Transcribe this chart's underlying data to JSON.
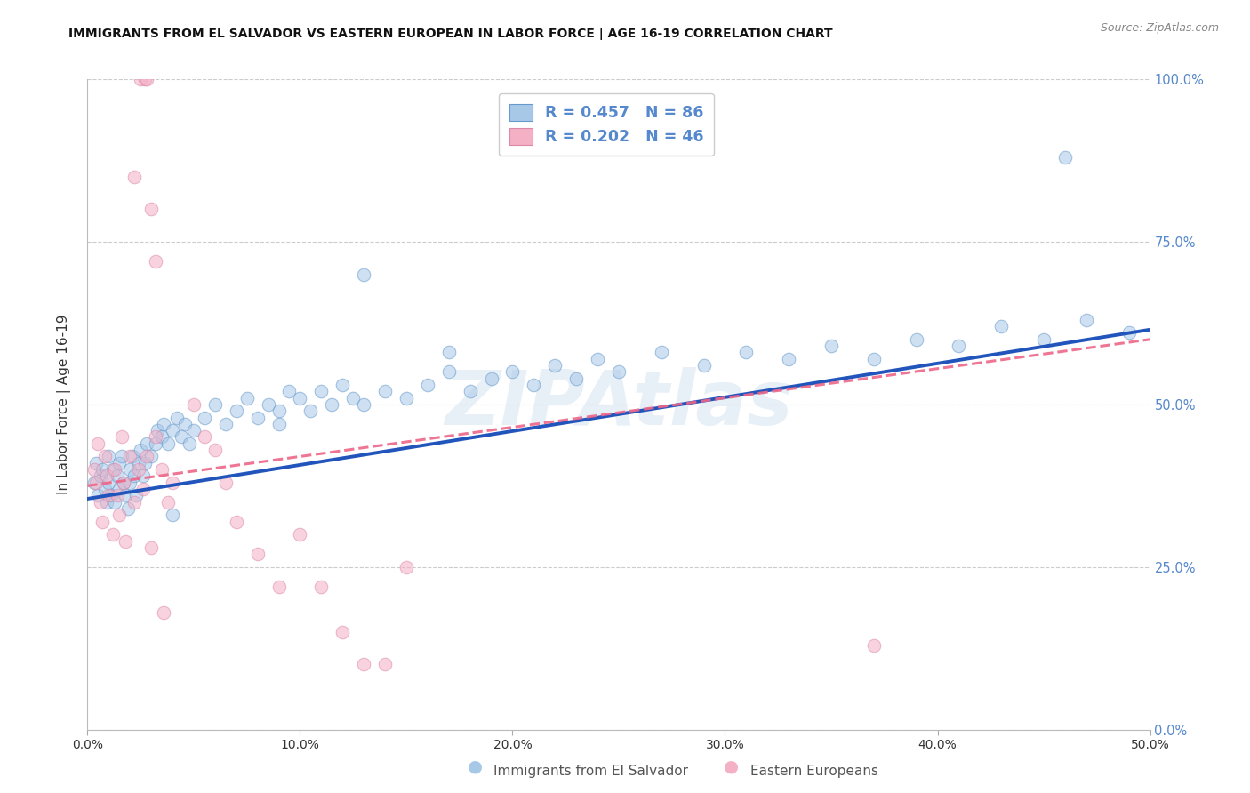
{
  "title": "IMMIGRANTS FROM EL SALVADOR VS EASTERN EUROPEAN IN LABOR FORCE | AGE 16-19 CORRELATION CHART",
  "source": "Source: ZipAtlas.com",
  "ylabel": "In Labor Force | Age 16-19",
  "legend_labels": [
    "Immigrants from El Salvador",
    "Eastern Europeans"
  ],
  "legend_r_blue": "R = 0.457",
  "legend_n_blue": "N = 86",
  "legend_r_pink": "R = 0.202",
  "legend_n_pink": "N = 46",
  "blue_scatter_color": "#A8C8E8",
  "blue_scatter_edge": "#6699CC",
  "pink_scatter_color": "#F4B0C5",
  "pink_scatter_edge": "#DD88AA",
  "blue_line_color": "#2255BB",
  "pink_line_color": "#EE6688",
  "right_axis_color": "#5588CC",
  "watermark": "ZIPAtlas",
  "watermark_color": "#C5D8EC",
  "xlim": [
    0.0,
    0.5
  ],
  "ylim": [
    0.0,
    1.0
  ],
  "xtick_vals": [
    0.0,
    0.1,
    0.2,
    0.3,
    0.4,
    0.5
  ],
  "xtick_labels": [
    "0.0%",
    "10.0%",
    "20.0%",
    "30.0%",
    "40.0%",
    "50.0%"
  ],
  "ytick_vals": [
    0.0,
    0.25,
    0.5,
    0.75,
    1.0
  ],
  "ytick_labels_right": [
    "0.0%",
    "25.0%",
    "50.0%",
    "75.0%",
    "100.0%"
  ],
  "grid_color": "#CCCCCC",
  "background_color": "#FFFFFF",
  "blue_x": [
    0.003,
    0.004,
    0.005,
    0.006,
    0.007,
    0.008,
    0.009,
    0.01,
    0.01,
    0.011,
    0.012,
    0.013,
    0.014,
    0.015,
    0.015,
    0.016,
    0.017,
    0.018,
    0.019,
    0.02,
    0.02,
    0.021,
    0.022,
    0.023,
    0.024,
    0.025,
    0.026,
    0.027,
    0.028,
    0.03,
    0.032,
    0.033,
    0.035,
    0.036,
    0.038,
    0.04,
    0.042,
    0.044,
    0.046,
    0.048,
    0.05,
    0.055,
    0.06,
    0.065,
    0.07,
    0.075,
    0.08,
    0.085,
    0.09,
    0.095,
    0.1,
    0.105,
    0.11,
    0.115,
    0.12,
    0.125,
    0.13,
    0.14,
    0.15,
    0.16,
    0.17,
    0.18,
    0.19,
    0.2,
    0.21,
    0.22,
    0.23,
    0.24,
    0.25,
    0.27,
    0.29,
    0.31,
    0.33,
    0.35,
    0.37,
    0.39,
    0.41,
    0.43,
    0.45,
    0.47,
    0.49,
    0.17,
    0.13,
    0.09,
    0.04,
    0.46
  ],
  "blue_y": [
    0.38,
    0.41,
    0.36,
    0.39,
    0.4,
    0.37,
    0.35,
    0.42,
    0.38,
    0.36,
    0.4,
    0.35,
    0.39,
    0.41,
    0.37,
    0.42,
    0.38,
    0.36,
    0.34,
    0.4,
    0.38,
    0.42,
    0.39,
    0.36,
    0.41,
    0.43,
    0.39,
    0.41,
    0.44,
    0.42,
    0.44,
    0.46,
    0.45,
    0.47,
    0.44,
    0.46,
    0.48,
    0.45,
    0.47,
    0.44,
    0.46,
    0.48,
    0.5,
    0.47,
    0.49,
    0.51,
    0.48,
    0.5,
    0.49,
    0.52,
    0.51,
    0.49,
    0.52,
    0.5,
    0.53,
    0.51,
    0.5,
    0.52,
    0.51,
    0.53,
    0.55,
    0.52,
    0.54,
    0.55,
    0.53,
    0.56,
    0.54,
    0.57,
    0.55,
    0.58,
    0.56,
    0.58,
    0.57,
    0.59,
    0.57,
    0.6,
    0.59,
    0.62,
    0.6,
    0.63,
    0.61,
    0.58,
    0.7,
    0.47,
    0.33,
    0.88
  ],
  "pink_x": [
    0.003,
    0.004,
    0.005,
    0.006,
    0.007,
    0.008,
    0.009,
    0.01,
    0.012,
    0.013,
    0.014,
    0.015,
    0.016,
    0.017,
    0.018,
    0.02,
    0.022,
    0.024,
    0.026,
    0.028,
    0.03,
    0.032,
    0.035,
    0.038,
    0.04,
    0.025,
    0.027,
    0.028,
    0.05,
    0.055,
    0.06,
    0.065,
    0.07,
    0.08,
    0.09,
    0.1,
    0.11,
    0.12,
    0.13,
    0.14,
    0.15,
    0.03,
    0.032,
    0.036,
    0.37,
    0.022
  ],
  "pink_y": [
    0.4,
    0.38,
    0.44,
    0.35,
    0.32,
    0.42,
    0.39,
    0.36,
    0.3,
    0.4,
    0.36,
    0.33,
    0.45,
    0.38,
    0.29,
    0.42,
    0.35,
    0.4,
    0.37,
    0.42,
    0.28,
    0.45,
    0.4,
    0.35,
    0.38,
    1.0,
    1.0,
    1.0,
    0.5,
    0.45,
    0.43,
    0.38,
    0.32,
    0.27,
    0.22,
    0.3,
    0.22,
    0.15,
    0.1,
    0.1,
    0.25,
    0.8,
    0.72,
    0.18,
    0.13,
    0.85
  ],
  "blue_intercept": 0.355,
  "blue_slope": 0.52,
  "pink_intercept": 0.375,
  "pink_slope": 0.45
}
